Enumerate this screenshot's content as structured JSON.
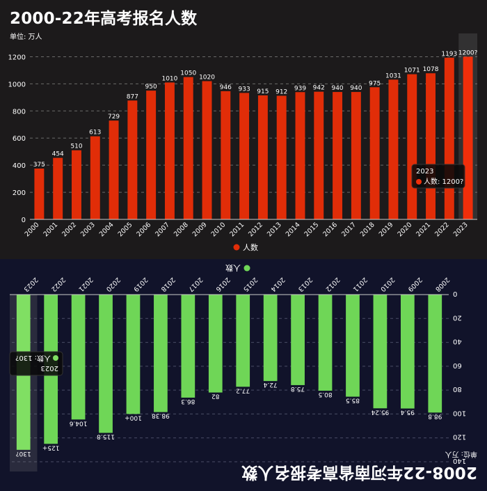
{
  "chart_data": [
    {
      "type": "bar",
      "title": "2000-22年高考报名人数",
      "unit_label": "单位: 万人",
      "categories": [
        "2000",
        "2001",
        "2002",
        "2003",
        "2004",
        "2005",
        "2006",
        "2007",
        "2008",
        "2009",
        "2010",
        "2011",
        "2012",
        "2013",
        "2014",
        "2015",
        "2016",
        "2017",
        "2018",
        "2019",
        "2020",
        "2021",
        "2022",
        "2023"
      ],
      "values": [
        375,
        454,
        510,
        613,
        729,
        877,
        950,
        1010,
        1050,
        1020,
        946,
        933,
        915,
        912,
        939,
        942,
        940,
        940,
        975,
        1031,
        1071,
        1078,
        1193,
        1200
      ],
      "data_labels": [
        "375",
        "454",
        "510",
        "613",
        "729",
        "877",
        "950",
        "1010",
        "1050",
        "1020",
        "946",
        "933",
        "915",
        "912",
        "939",
        "942",
        "940",
        "940",
        "975",
        "1031",
        "1071",
        "1078",
        "1193",
        "1200?"
      ],
      "yticks": [
        0,
        200,
        400,
        600,
        800,
        1000,
        1200
      ],
      "ylim": [
        0,
        1300
      ],
      "legend": "人数",
      "series_color": "#e12d08",
      "highlight_color": "#f02e0a",
      "highlight_index": 23,
      "tooltip": {
        "title": "2023",
        "label": "人数: 1200?"
      }
    },
    {
      "type": "bar",
      "orientation": "rotated-180",
      "title": "2008-22年河南省高考报名人数",
      "unit_label": "单位: 万人",
      "categories": [
        "2008",
        "2009",
        "2010",
        "2011",
        "2012",
        "2013",
        "2014",
        "2015",
        "2016",
        "2017",
        "2018",
        "2019",
        "2020",
        "2021",
        "2022",
        "2023"
      ],
      "values": [
        98.8,
        95.4,
        95.24,
        85.5,
        80.5,
        75.8,
        72.4,
        77.2,
        82,
        86.3,
        98.38,
        100,
        115.8,
        104.6,
        125,
        130
      ],
      "data_labels": [
        "98.8",
        "95.4",
        "95.24",
        "85.5",
        "80.5",
        "75.8",
        "72.4",
        "77.2",
        "82",
        "86.3",
        "98.38",
        "100+",
        "115.8",
        "104.6",
        "125+",
        "130?"
      ],
      "yticks": [
        0,
        20,
        40,
        60,
        80,
        100,
        120,
        140
      ],
      "ylim": [
        0,
        140
      ],
      "legend": "人数",
      "series_color": "#6fd657",
      "highlight_color": "#80df63",
      "highlight_index": 15,
      "tooltip": {
        "title": "2023",
        "label": "人数: 130?"
      }
    }
  ]
}
